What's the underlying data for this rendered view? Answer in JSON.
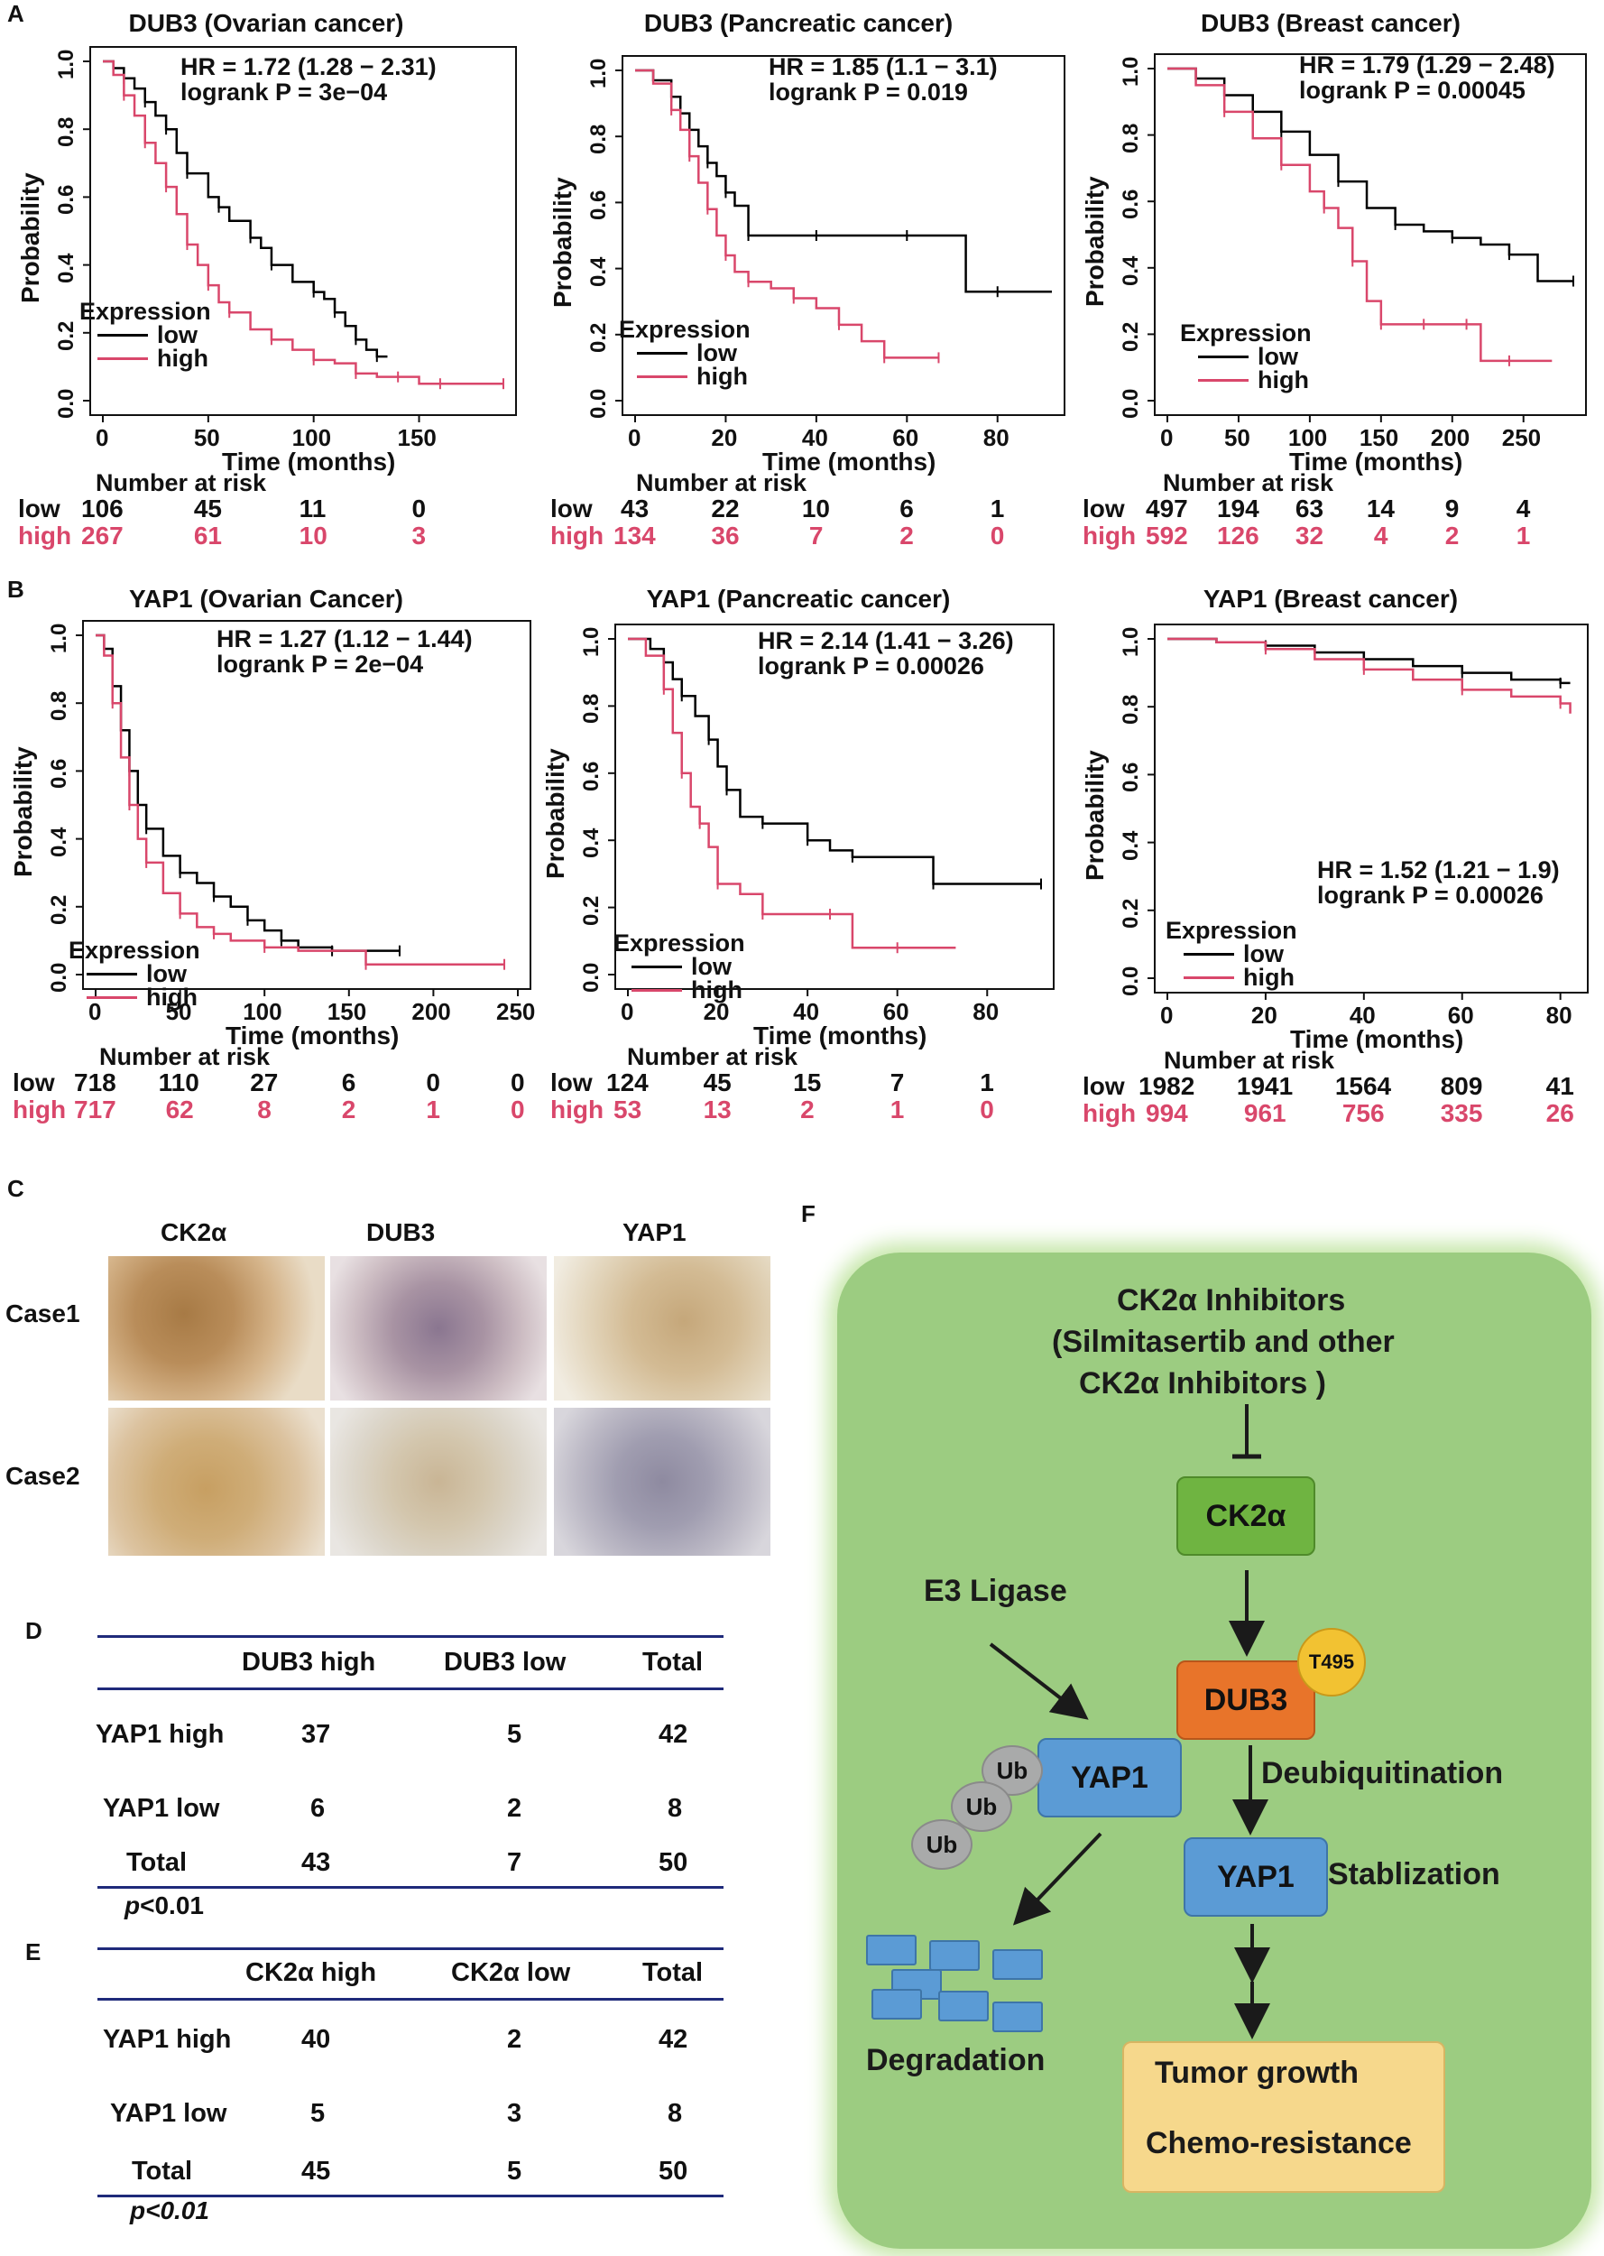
{
  "panel_letters": {
    "a": "A",
    "b": "B",
    "c": "C",
    "d": "D",
    "e": "E",
    "f": "F"
  },
  "chart_data": [
    {
      "type": "line",
      "title": "DUB3 (Ovarian cancer)",
      "xlabel": "Time (months)",
      "ylabel": "Probability",
      "xlim": [
        0,
        190
      ],
      "ylim": [
        0,
        1
      ],
      "xticks": [
        "0",
        "50",
        "100",
        "150"
      ],
      "xtick_values": [
        0,
        50,
        100,
        150
      ],
      "yticks": [
        "0.0",
        "0.2",
        "0.4",
        "0.6",
        "0.8",
        "1.0"
      ],
      "hr": "HR = 1.72 (1.28 − 2.31)",
      "logrank": "logrank P = 3e−04",
      "legend_title": "Expression",
      "legend": [
        "low",
        "high"
      ],
      "series": [
        {
          "name": "low",
          "color": "#000000",
          "x": [
            0,
            5,
            10,
            15,
            20,
            25,
            30,
            35,
            40,
            50,
            55,
            60,
            70,
            75,
            80,
            90,
            100,
            105,
            110,
            115,
            120,
            125,
            130,
            135
          ],
          "y": [
            1.0,
            0.98,
            0.95,
            0.92,
            0.88,
            0.84,
            0.8,
            0.73,
            0.67,
            0.6,
            0.57,
            0.53,
            0.48,
            0.45,
            0.4,
            0.35,
            0.32,
            0.3,
            0.26,
            0.22,
            0.18,
            0.15,
            0.13,
            0.13
          ]
        },
        {
          "name": "high",
          "color": "#d9476b",
          "x": [
            0,
            5,
            10,
            15,
            20,
            25,
            30,
            35,
            40,
            45,
            50,
            55,
            60,
            70,
            80,
            90,
            100,
            110,
            120,
            130,
            140,
            150,
            160,
            170,
            190
          ],
          "y": [
            1.0,
            0.96,
            0.9,
            0.84,
            0.76,
            0.7,
            0.63,
            0.55,
            0.46,
            0.4,
            0.34,
            0.29,
            0.26,
            0.21,
            0.18,
            0.15,
            0.12,
            0.11,
            0.08,
            0.07,
            0.07,
            0.05,
            0.05,
            0.05,
            0.05
          ]
        }
      ],
      "risk_title": "Number at risk",
      "risk": {
        "low": [
          "106",
          "45",
          "11",
          "0"
        ],
        "high": [
          "267",
          "61",
          "10",
          "3"
        ]
      },
      "risk_labels": {
        "low": "low",
        "high": "high"
      }
    },
    {
      "type": "line",
      "title": "DUB3 (Pancreatic cancer)",
      "xlabel": "Time (months)",
      "ylabel": "Probability",
      "xlim": [
        0,
        92
      ],
      "ylim": [
        0,
        1
      ],
      "xticks": [
        "0",
        "20",
        "40",
        "60",
        "80"
      ],
      "xtick_values": [
        0,
        20,
        40,
        60,
        80
      ],
      "yticks": [
        "0.0",
        "0.2",
        "0.4",
        "0.6",
        "0.8",
        "1.0"
      ],
      "hr": "HR = 1.85 (1.1 − 3.1)",
      "logrank": "logrank P = 0.019",
      "legend_title": "Expression",
      "legend": [
        "low",
        "high"
      ],
      "series": [
        {
          "name": "low",
          "color": "#000000",
          "x": [
            0,
            4,
            8,
            10,
            12,
            14,
            16,
            18,
            20,
            22,
            25,
            30,
            40,
            50,
            60,
            73,
            80,
            92
          ],
          "y": [
            1.0,
            0.97,
            0.92,
            0.87,
            0.82,
            0.77,
            0.72,
            0.68,
            0.63,
            0.59,
            0.5,
            0.5,
            0.5,
            0.5,
            0.5,
            0.33,
            0.33,
            0.33
          ]
        },
        {
          "name": "high",
          "color": "#d9476b",
          "x": [
            0,
            4,
            8,
            10,
            12,
            14,
            16,
            18,
            20,
            22,
            25,
            30,
            35,
            40,
            45,
            50,
            55,
            60,
            67
          ],
          "y": [
            1.0,
            0.96,
            0.88,
            0.82,
            0.74,
            0.66,
            0.58,
            0.5,
            0.44,
            0.39,
            0.36,
            0.34,
            0.31,
            0.28,
            0.23,
            0.18,
            0.13,
            0.13,
            0.13
          ]
        }
      ],
      "risk_title": "Number at risk",
      "risk": {
        "low": [
          "43",
          "22",
          "10",
          "6",
          "1"
        ],
        "high": [
          "134",
          "36",
          "7",
          "2",
          "0"
        ]
      },
      "risk_labels": {
        "low": "low",
        "high": "high"
      }
    },
    {
      "type": "line",
      "title": "DUB3 (Breast cancer)",
      "xlabel": "Time (months)",
      "ylabel": "Probability",
      "xlim": [
        0,
        285
      ],
      "ylim": [
        0,
        1
      ],
      "xticks": [
        "0",
        "50",
        "100",
        "150",
        "200",
        "250"
      ],
      "xtick_values": [
        0,
        50,
        100,
        150,
        200,
        250
      ],
      "yticks": [
        "0.0",
        "0.2",
        "0.4",
        "0.6",
        "0.8",
        "1.0"
      ],
      "hr": "HR = 1.79 (1.29 − 2.48)",
      "logrank": "logrank P = 0.00045",
      "legend_title": "Expression",
      "legend": [
        "low",
        "high"
      ],
      "series": [
        {
          "name": "low",
          "color": "#000000",
          "x": [
            0,
            20,
            40,
            60,
            80,
            100,
            120,
            140,
            160,
            180,
            200,
            220,
            240,
            260,
            285
          ],
          "y": [
            1.0,
            0.97,
            0.92,
            0.87,
            0.81,
            0.74,
            0.66,
            0.58,
            0.53,
            0.51,
            0.49,
            0.47,
            0.44,
            0.36,
            0.36
          ]
        },
        {
          "name": "high",
          "color": "#d9476b",
          "x": [
            0,
            20,
            40,
            60,
            80,
            100,
            110,
            120,
            130,
            140,
            150,
            160,
            180,
            200,
            210,
            220,
            240,
            270
          ],
          "y": [
            1.0,
            0.95,
            0.87,
            0.79,
            0.71,
            0.63,
            0.58,
            0.52,
            0.42,
            0.3,
            0.23,
            0.23,
            0.23,
            0.23,
            0.23,
            0.12,
            0.12,
            0.12
          ]
        }
      ],
      "risk_title": "Number at risk",
      "risk": {
        "low": [
          "497",
          "194",
          "63",
          "14",
          "9",
          "4"
        ],
        "high": [
          "592",
          "126",
          "32",
          "4",
          "2",
          "1"
        ]
      },
      "risk_labels": {
        "low": "low",
        "high": "high"
      }
    },
    {
      "type": "line",
      "title": "YAP1 (Ovarian Cancer)",
      "xlabel": "Time (months)",
      "ylabel": "Probability",
      "xlim": [
        0,
        250
      ],
      "ylim": [
        0,
        1
      ],
      "xticks": [
        "0",
        "50",
        "100",
        "150",
        "200",
        "250"
      ],
      "xtick_values": [
        0,
        50,
        100,
        150,
        200,
        250
      ],
      "yticks": [
        "0.0",
        "0.2",
        "0.4",
        "0.6",
        "0.8",
        "1.0"
      ],
      "hr": "HR = 1.27 (1.12 − 1.44)",
      "logrank": "logrank P = 2e−04",
      "legend_title": "Expression",
      "legend": [
        "low",
        "high"
      ],
      "series": [
        {
          "name": "low",
          "color": "#000000",
          "x": [
            0,
            5,
            10,
            15,
            20,
            25,
            30,
            40,
            50,
            60,
            70,
            80,
            90,
            100,
            110,
            120,
            140,
            160,
            180
          ],
          "y": [
            1.0,
            0.96,
            0.85,
            0.72,
            0.6,
            0.5,
            0.43,
            0.35,
            0.3,
            0.27,
            0.23,
            0.2,
            0.16,
            0.13,
            0.1,
            0.08,
            0.07,
            0.07,
            0.07
          ]
        },
        {
          "name": "high",
          "color": "#d9476b",
          "x": [
            0,
            5,
            10,
            15,
            20,
            25,
            30,
            40,
            50,
            60,
            70,
            80,
            100,
            120,
            160,
            200,
            242
          ],
          "y": [
            1.0,
            0.94,
            0.8,
            0.64,
            0.5,
            0.4,
            0.33,
            0.24,
            0.18,
            0.14,
            0.12,
            0.1,
            0.08,
            0.07,
            0.03,
            0.03,
            0.03
          ]
        }
      ],
      "risk_title": "Number at risk",
      "risk": {
        "low": [
          "718",
          "110",
          "27",
          "6",
          "0",
          "0"
        ],
        "high": [
          "717",
          "62",
          "8",
          "2",
          "1",
          "0"
        ]
      },
      "risk_labels": {
        "low": "low",
        "high": "high"
      }
    },
    {
      "type": "line",
      "title": "YAP1 (Pancreatic cancer)",
      "xlabel": "Time (months)",
      "ylabel": "Probability",
      "xlim": [
        0,
        92
      ],
      "ylim": [
        0,
        1
      ],
      "xticks": [
        "0",
        "20",
        "40",
        "60",
        "80"
      ],
      "xtick_values": [
        0,
        20,
        40,
        60,
        80
      ],
      "yticks": [
        "0.0",
        "0.2",
        "0.4",
        "0.6",
        "0.8",
        "1.0"
      ],
      "hr": "HR = 2.14 (1.41 − 3.26)",
      "logrank": "logrank P = 0.00026",
      "legend_title": "Expression",
      "legend": [
        "low",
        "high"
      ],
      "series": [
        {
          "name": "low",
          "color": "#000000",
          "x": [
            0,
            5,
            8,
            10,
            12,
            15,
            18,
            20,
            22,
            25,
            30,
            35,
            40,
            45,
            50,
            60,
            68,
            80,
            92
          ],
          "y": [
            1.0,
            0.97,
            0.93,
            0.88,
            0.83,
            0.77,
            0.7,
            0.62,
            0.55,
            0.47,
            0.45,
            0.45,
            0.4,
            0.37,
            0.35,
            0.35,
            0.27,
            0.27,
            0.27
          ]
        },
        {
          "name": "high",
          "color": "#d9476b",
          "x": [
            0,
            4,
            8,
            10,
            12,
            14,
            16,
            18,
            20,
            25,
            30,
            40,
            45,
            50,
            60,
            73
          ],
          "y": [
            1.0,
            0.95,
            0.85,
            0.72,
            0.6,
            0.5,
            0.45,
            0.38,
            0.27,
            0.24,
            0.18,
            0.18,
            0.18,
            0.08,
            0.08,
            0.08
          ]
        }
      ],
      "risk_title": "Number at risk",
      "risk": {
        "low": [
          "124",
          "45",
          "15",
          "7",
          "1"
        ],
        "high": [
          "53",
          "13",
          "2",
          "1",
          "0"
        ]
      },
      "risk_labels": {
        "low": "low",
        "high": "high"
      }
    },
    {
      "type": "line",
      "title": "YAP1 (Breast cancer)",
      "xlabel": "Time (months)",
      "ylabel": "Probability",
      "xlim": [
        0,
        83
      ],
      "ylim": [
        0,
        1
      ],
      "xticks": [
        "0",
        "20",
        "40",
        "60",
        "80"
      ],
      "xtick_values": [
        0,
        20,
        40,
        60,
        80
      ],
      "yticks": [
        "0.0",
        "0.2",
        "0.4",
        "0.6",
        "0.8",
        "1.0"
      ],
      "hr": "HR = 1.52 (1.21 − 1.9)",
      "logrank": "logrank P = 0.00026",
      "legend_title": "Expression",
      "legend": [
        "low",
        "high"
      ],
      "series": [
        {
          "name": "low",
          "color": "#000000",
          "x": [
            0,
            10,
            20,
            30,
            40,
            50,
            60,
            70,
            80,
            82
          ],
          "y": [
            1.0,
            0.99,
            0.98,
            0.96,
            0.94,
            0.92,
            0.9,
            0.88,
            0.87,
            0.87
          ]
        },
        {
          "name": "high",
          "color": "#d9476b",
          "x": [
            0,
            10,
            20,
            30,
            40,
            50,
            60,
            70,
            80,
            82
          ],
          "y": [
            1.0,
            0.99,
            0.97,
            0.94,
            0.91,
            0.88,
            0.85,
            0.83,
            0.81,
            0.78
          ]
        }
      ],
      "risk_title": "Number at risk",
      "risk": {
        "low": [
          "1982",
          "1941",
          "1564",
          "809",
          "41"
        ],
        "high": [
          "994",
          "961",
          "756",
          "335",
          "26"
        ]
      },
      "risk_labels": {
        "low": "low",
        "high": "high"
      }
    }
  ],
  "panel_c": {
    "columns": [
      "CK2α",
      "DUB3",
      "YAP1"
    ],
    "rows": [
      "Case1",
      "Case2"
    ]
  },
  "table_d": {
    "headers": [
      "DUB3 high",
      "DUB3 low",
      "Total"
    ],
    "rows": [
      [
        "YAP1 high",
        "37",
        "5",
        "42"
      ],
      [
        "YAP1 low",
        "6",
        "2",
        "8"
      ],
      [
        "Total",
        "43",
        "7",
        "50"
      ]
    ],
    "p_italic": "p",
    "p_rest": "<0.01"
  },
  "table_e": {
    "headers": [
      "CK2α high",
      "CK2α low",
      "Total"
    ],
    "rows": [
      [
        "YAP1 high",
        "40",
        "2",
        "42"
      ],
      [
        "YAP1 low",
        "5",
        "3",
        "8"
      ],
      [
        "Total",
        "45",
        "5",
        "50"
      ]
    ],
    "p": "p<0.01"
  },
  "panel_f": {
    "inhibitor_line1": "CK2α Inhibitors",
    "inhibitor_line2": "(Silmitasertib and other",
    "inhibitor_line3": "CK2α Inhibitors )",
    "ck2a": "CK2α",
    "e3": "E3 Ligase",
    "dub3": "DUB3",
    "t495": "T495",
    "ub": "Ub",
    "yap1": "YAP1",
    "deubiq": "Deubiquitination",
    "stab": "Stablization",
    "degradation": "Degradation",
    "tumor": "Tumor growth",
    "chemo": "Chemo-resistance",
    "colors": {
      "background": "#9ccc81",
      "ck2a": "#6fb441",
      "dub3": "#e8742a",
      "t495": "#f2c232",
      "yap1": "#5b9bd5",
      "outcome": "#f6d88c",
      "ub": "#a9aaaa"
    }
  }
}
